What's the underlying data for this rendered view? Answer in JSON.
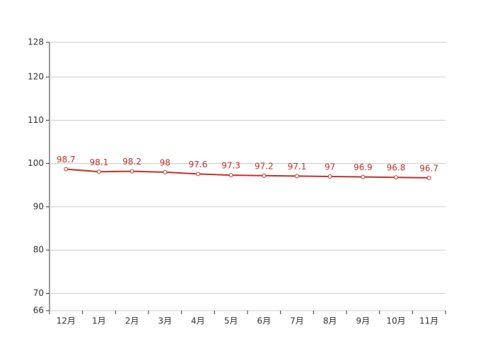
{
  "chart_data": {
    "type": "line",
    "categories": [
      "12月",
      "1月",
      "2月",
      "3月",
      "4月",
      "5月",
      "6月",
      "7月",
      "8月",
      "9月",
      "10月",
      "11月"
    ],
    "values": [
      98.7,
      98.1,
      98.2,
      98,
      97.6,
      97.3,
      97.2,
      97.1,
      97,
      96.9,
      96.8,
      96.7
    ],
    "color": "#c4302b",
    "ylim": [
      66,
      128
    ],
    "yticks": [
      66,
      70,
      80,
      90,
      100,
      110,
      120,
      128
    ],
    "grid": true
  }
}
